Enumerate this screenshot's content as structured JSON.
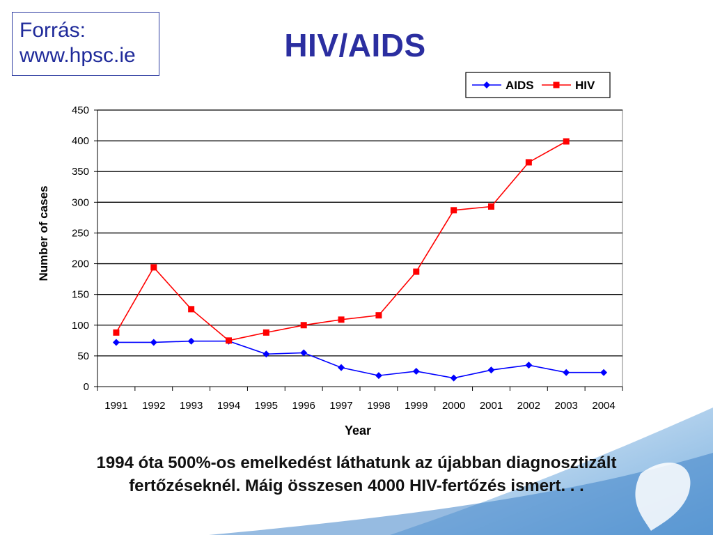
{
  "source": {
    "line1": "Forrás:",
    "line2": "www.hpsc.ie"
  },
  "slide_title": "HIV/AIDS",
  "caption": {
    "line1": "1994 óta 500%-os emelkedést  láthatunk  az újabban diagnosztizált",
    "line2": "fertőzéseknél.  Máig összesen 4000 HIV-fertőzés ismert. . ."
  },
  "chart_data": {
    "type": "line",
    "title": "",
    "xlabel": "Year",
    "ylabel": "Number of cases",
    "x": [
      "1991",
      "1992",
      "1993",
      "1994",
      "1995",
      "1996",
      "1997",
      "1998",
      "1999",
      "2000",
      "2001",
      "2002",
      "2003",
      "2004"
    ],
    "ylim": [
      0,
      450
    ],
    "yticks": [
      0,
      50,
      100,
      150,
      200,
      250,
      300,
      350,
      400,
      450
    ],
    "grid": true,
    "legend_position": "top-right",
    "series": [
      {
        "name": "AIDS",
        "color": "#0000ff",
        "marker": "diamond",
        "values": [
          72,
          72,
          74,
          74,
          53,
          55,
          31,
          18,
          25,
          14,
          27,
          35,
          23,
          23
        ]
      },
      {
        "name": "HIV",
        "color": "#ff0000",
        "marker": "square",
        "values": [
          88,
          194,
          126,
          75,
          88,
          100,
          109,
          116,
          187,
          287,
          293,
          365,
          399,
          null
        ]
      }
    ]
  }
}
